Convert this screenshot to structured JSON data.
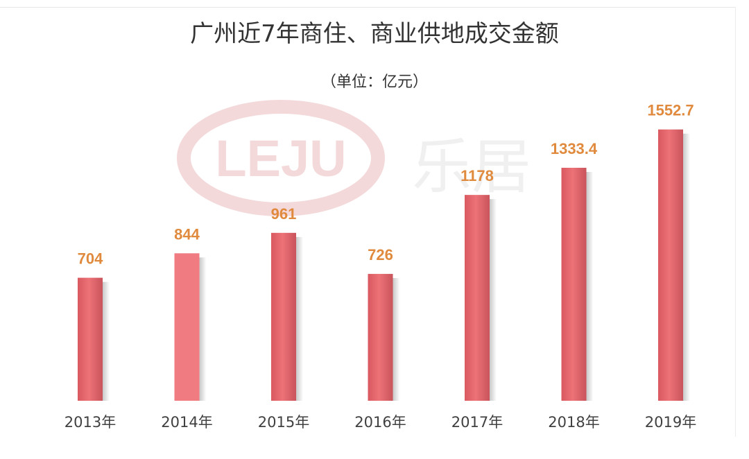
{
  "chart_data": {
    "type": "bar",
    "title": "广州近7年商住、商业供地成交金额",
    "subtitle": "（单位：亿元）",
    "categories": [
      "2013年",
      "2014年",
      "2015年",
      "2016年",
      "2017年",
      "2018年",
      "2019年"
    ],
    "values": [
      704,
      844,
      961,
      726,
      1178,
      1333.4,
      1552.7
    ],
    "data_labels": [
      "704",
      "844",
      "961",
      "726",
      "1178",
      "1333.4",
      "1552.7"
    ],
    "xlabel": "",
    "ylabel": "",
    "ylim": [
      0,
      1600
    ],
    "grid": false,
    "legend": "none",
    "watermark_text": "LEJU 乐居",
    "colors": {
      "bar": "#e5676c",
      "bar_highlight": "#f07b80",
      "bar_shadow": "#b94a51",
      "data_label": "#e08a3e",
      "tick_label": "#404040",
      "title": "#333333",
      "watermark": "#f3d3d5"
    }
  }
}
